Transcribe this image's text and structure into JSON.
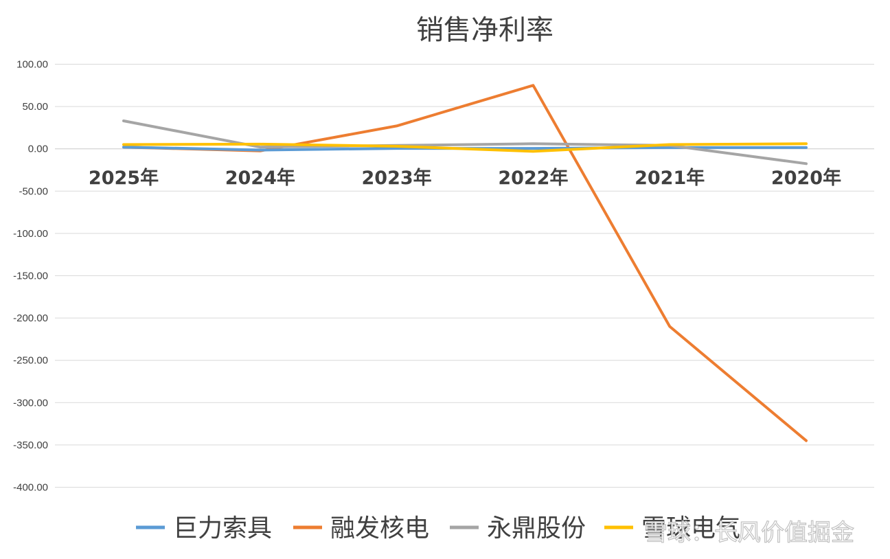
{
  "chart_data": {
    "type": "line",
    "title": "销售净利率",
    "categories": [
      "2025年",
      "2024年",
      "2023年",
      "2022年",
      "2021年",
      "2020年"
    ],
    "ylim": [
      -400,
      100
    ],
    "yticks": [
      "100.00",
      "50.00",
      "0.00",
      "-50.00",
      "-100.00",
      "-150.00",
      "-200.00",
      "-250.00",
      "-300.00",
      "-350.00",
      "-400.00"
    ],
    "grid": true,
    "legend_position": "bottom",
    "series": [
      {
        "name": "巨力索具",
        "color": "#5B9BD5",
        "values": [
          2,
          -1.5,
          0.5,
          0.5,
          1.5,
          1.5
        ]
      },
      {
        "name": "融发核电",
        "color": "#ED7D31",
        "values": [
          2,
          -2.5,
          27,
          75,
          -210,
          -345
        ]
      },
      {
        "name": "永鼎股份",
        "color": "#A5A5A5",
        "values": [
          33,
          2,
          4,
          6,
          4,
          -17.5
        ]
      },
      {
        "name": "雪球电气",
        "color": "#FFC000",
        "values": [
          5,
          5.5,
          3,
          -3,
          5,
          6
        ]
      }
    ]
  },
  "watermark": "雪球：长风价值掘金"
}
